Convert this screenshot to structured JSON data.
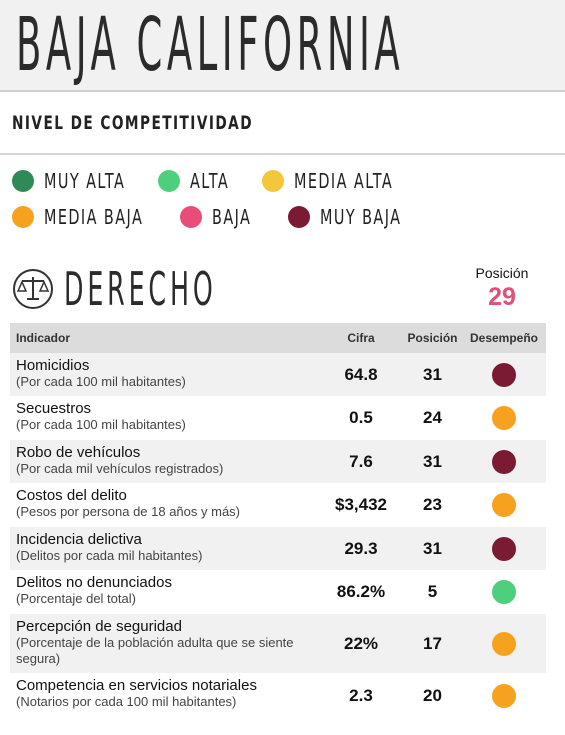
{
  "header": {
    "title": "BAJA CALIFORNIA",
    "subtitle": "NIVEL DE COMPETITIVIDAD"
  },
  "legend": [
    {
      "label": "MUY ALTA",
      "color": "#2e8b57"
    },
    {
      "label": "ALTA",
      "color": "#4cd07d"
    },
    {
      "label": "MEDIA ALTA",
      "color": "#f2c83a"
    },
    {
      "label": "MEDIA BAJA",
      "color": "#f7a21e"
    },
    {
      "label": "BAJA",
      "color": "#e84c79"
    },
    {
      "label": "MUY BAJA",
      "color": "#7a1a33"
    }
  ],
  "section": {
    "title": "DERECHO",
    "position_label": "Posición",
    "position": 29
  },
  "table": {
    "columns": [
      "Indicador",
      "Cifra",
      "Posición",
      "Desempeño"
    ],
    "rows": [
      {
        "name": "Homicidios",
        "unit": "(Por cada 100 mil habitantes)",
        "value": "64.8",
        "position": 31,
        "performance": "MUY BAJA"
      },
      {
        "name": "Secuestros",
        "unit": "(Por cada 100 mil habitantes)",
        "value": "0.5",
        "position": 24,
        "performance": "MEDIA BAJA"
      },
      {
        "name": "Robo de vehículos",
        "unit": "(Por cada mil vehículos registrados)",
        "value": "7.6",
        "position": 31,
        "performance": "MUY BAJA"
      },
      {
        "name": "Costos del delito",
        "unit": "(Pesos por persona de 18 años y más)",
        "value": "$3,432",
        "position": 23,
        "performance": "MEDIA BAJA"
      },
      {
        "name": "Incidencia delictiva",
        "unit": "(Delitos por cada mil habitantes)",
        "value": "29.3",
        "position": 31,
        "performance": "MUY BAJA"
      },
      {
        "name": "Delitos no denunciados",
        "unit": "(Porcentaje del total)",
        "value": "86.2%",
        "position": 5,
        "performance": "ALTA"
      },
      {
        "name": "Percepción de seguridad",
        "unit": "(Porcentaje de la población adulta que se siente segura)",
        "value": "22%",
        "position": 17,
        "performance": "MEDIA BAJA"
      },
      {
        "name": "Competencia en servicios notariales",
        "unit": "(Notarios por cada 100 mil habitantes)",
        "value": "2.3",
        "position": 20,
        "performance": "MEDIA BAJA"
      }
    ]
  }
}
